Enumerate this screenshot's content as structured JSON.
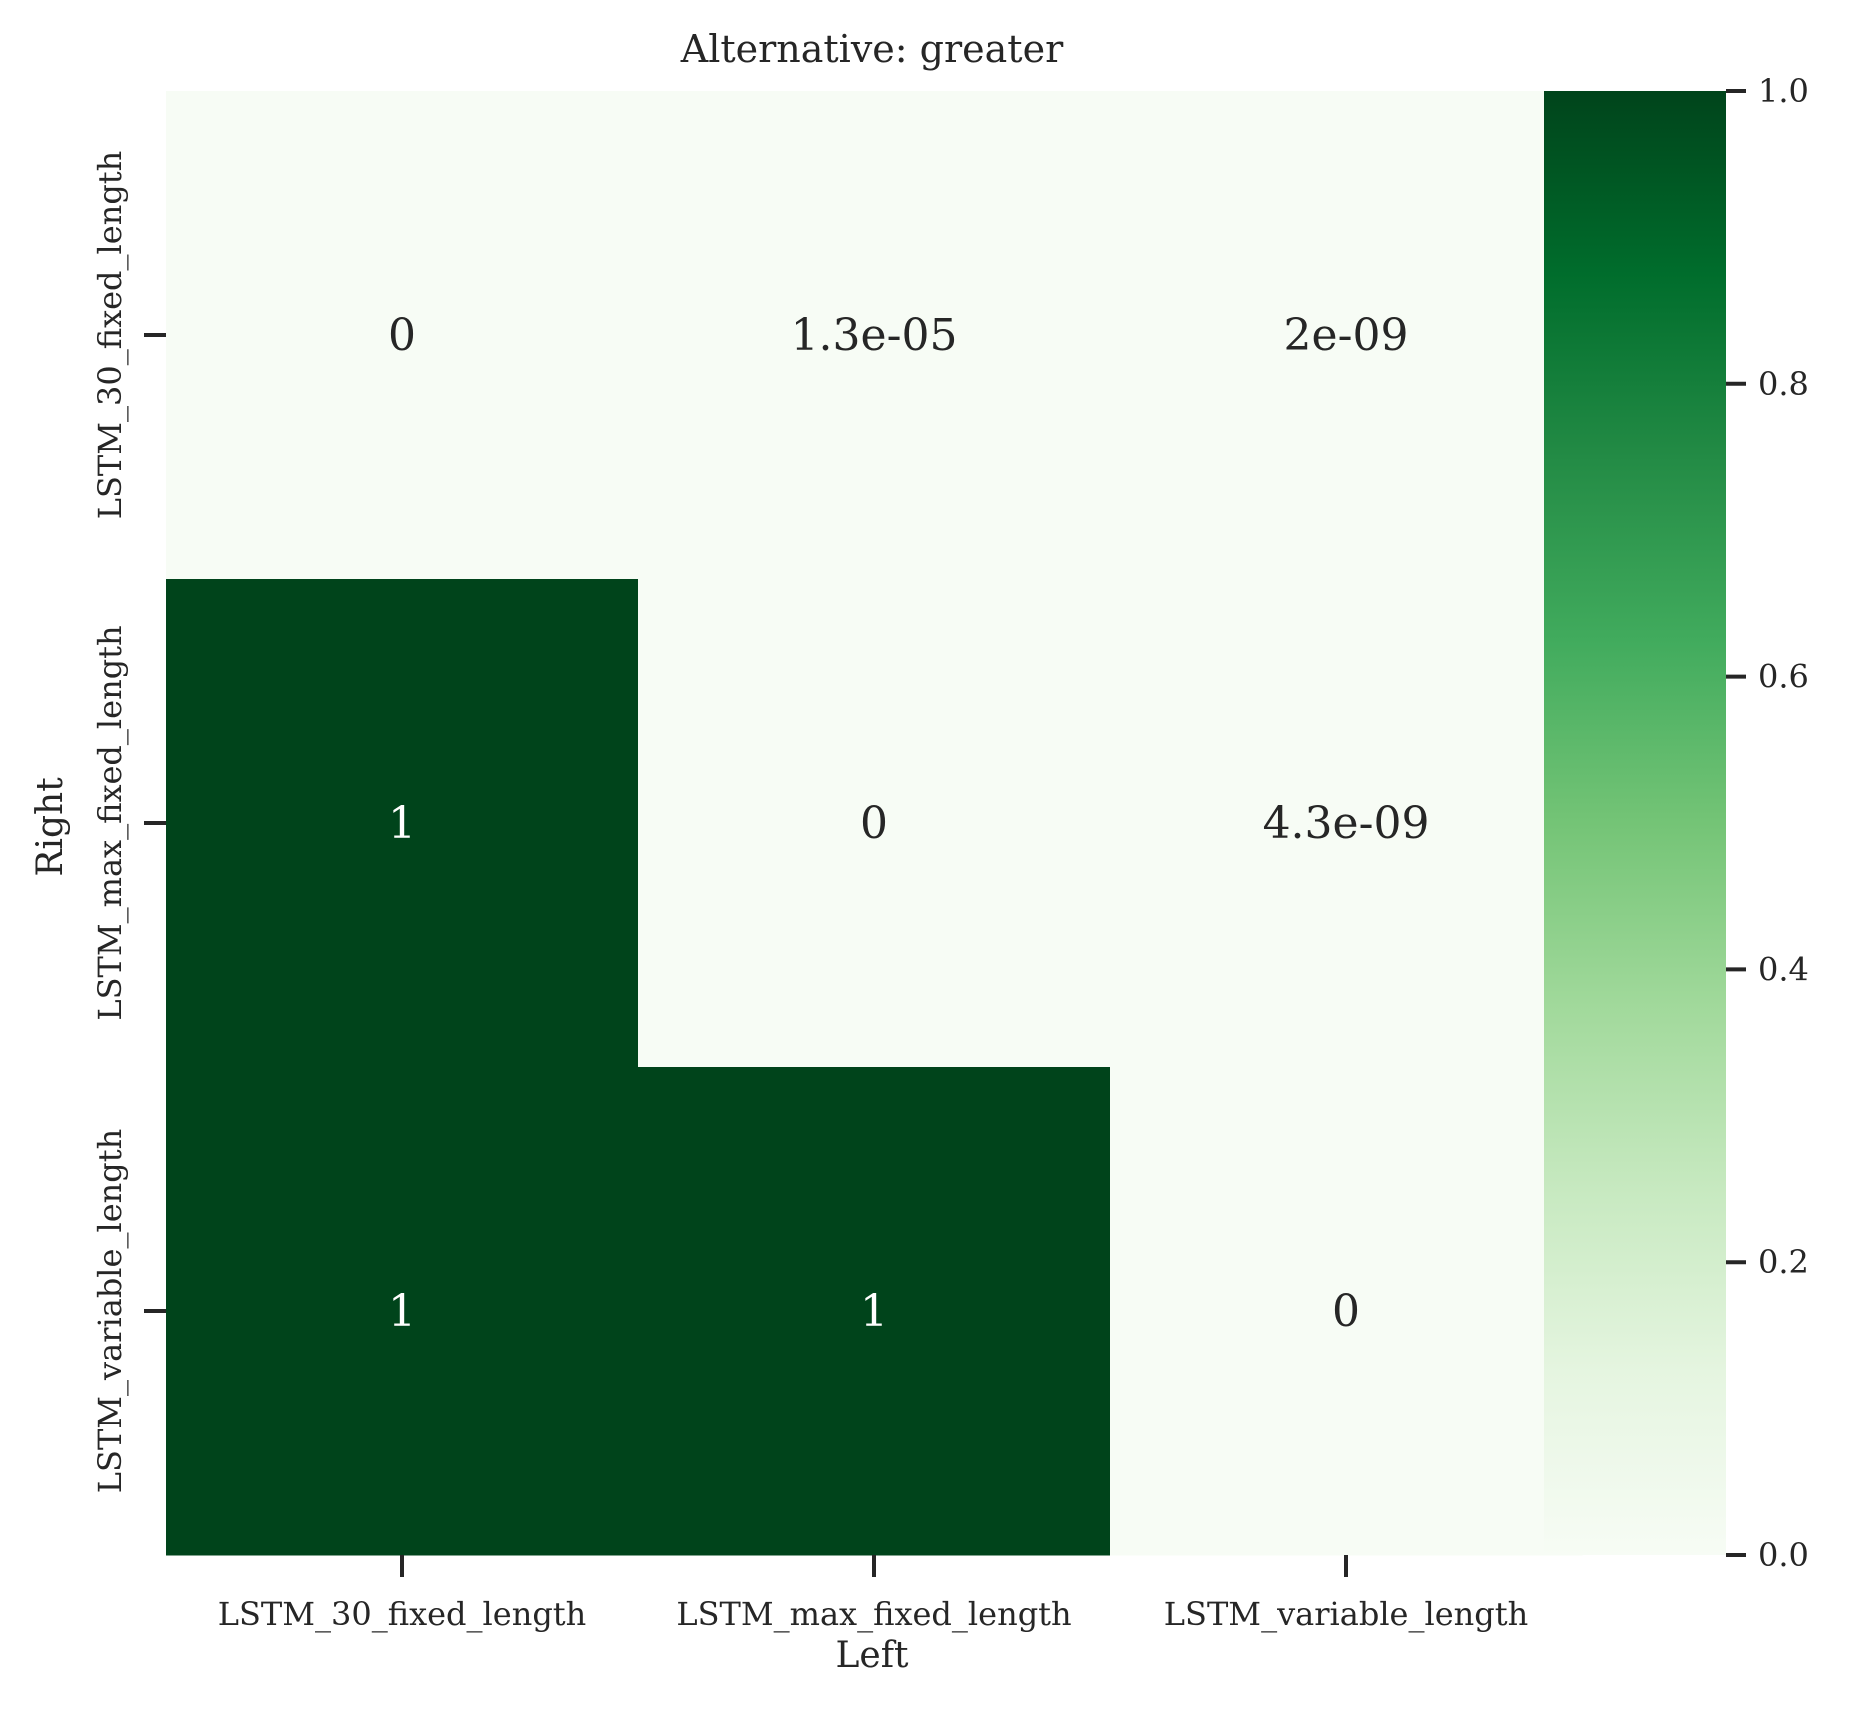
{
  "chart_data": {
    "type": "heatmap",
    "title": "Alternative: greater",
    "xlabel": "Left",
    "ylabel": "Right",
    "x_categories": [
      "LSTM_30_fixed_length",
      "LSTM_max_fixed_length",
      "LSTM_variable_length"
    ],
    "y_categories": [
      "LSTM_30_fixed_length",
      "LSTM_max_fixed_length",
      "LSTM_variable_length"
    ],
    "values": [
      [
        0,
        1.3e-05,
        2e-09
      ],
      [
        1,
        0,
        4.3e-09
      ],
      [
        1,
        1,
        0
      ]
    ],
    "annotations": [
      [
        "0",
        "1.3e-05",
        "2e-09"
      ],
      [
        "1",
        "0",
        "4.3e-09"
      ],
      [
        "1",
        "1",
        "0"
      ]
    ],
    "colormap": "Greens",
    "color_low": "#f7fcf5",
    "color_high": "#00441b",
    "colorbar": {
      "range": [
        0,
        1
      ],
      "ticks": [
        0.0,
        0.2,
        0.4,
        0.6,
        0.8,
        1.0
      ],
      "tick_labels": [
        "0.0",
        "0.2",
        "0.4",
        "0.6",
        "0.8",
        "1.0"
      ]
    }
  }
}
